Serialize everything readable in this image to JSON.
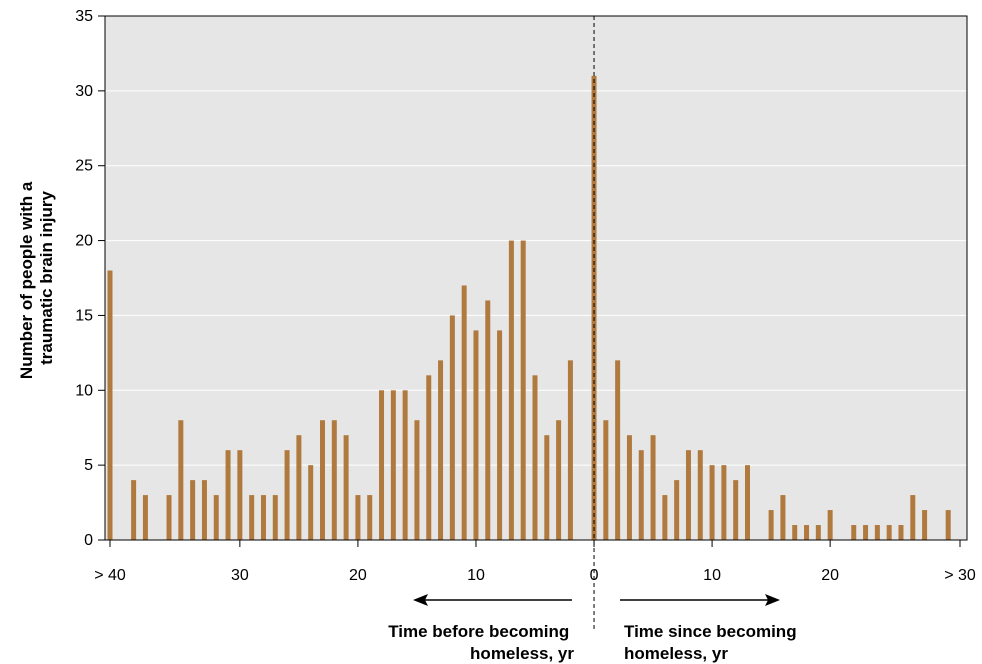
{
  "chart_data": {
    "type": "bar",
    "ylabel_lines": [
      "Number of people with a",
      "traumatic brain injury"
    ],
    "ylim": [
      0,
      35
    ],
    "y_ticks": [
      0,
      5,
      10,
      15,
      20,
      25,
      30,
      35
    ],
    "x_range": [
      -41,
      31
    ],
    "x_ticks": [
      {
        "pos": -41,
        "label": "> 40"
      },
      {
        "pos": -30,
        "label": "30"
      },
      {
        "pos": -20,
        "label": "20"
      },
      {
        "pos": -10,
        "label": "10"
      },
      {
        "pos": 0,
        "label": "0"
      },
      {
        "pos": 10,
        "label": "10"
      },
      {
        "pos": 20,
        "label": "20"
      },
      {
        "pos": 31,
        "label": "> 30"
      }
    ],
    "grid": true,
    "reference_line_at": 0,
    "bar_color": "#b07a3f",
    "plot_background": "#e6e6e6",
    "before_label_lines": [
      "Time before becoming",
      "homeless, yr"
    ],
    "after_label_lines": [
      "Time since becoming",
      "homeless, yr"
    ],
    "bars": [
      {
        "x": -41,
        "value": 18
      },
      {
        "x": -39,
        "value": 4
      },
      {
        "x": -38,
        "value": 3
      },
      {
        "x": -36,
        "value": 3
      },
      {
        "x": -35,
        "value": 8
      },
      {
        "x": -34,
        "value": 4
      },
      {
        "x": -33,
        "value": 4
      },
      {
        "x": -32,
        "value": 3
      },
      {
        "x": -31,
        "value": 6
      },
      {
        "x": -30,
        "value": 6
      },
      {
        "x": -29,
        "value": 3
      },
      {
        "x": -28,
        "value": 3
      },
      {
        "x": -27,
        "value": 3
      },
      {
        "x": -26,
        "value": 6
      },
      {
        "x": -25,
        "value": 7
      },
      {
        "x": -24,
        "value": 5
      },
      {
        "x": -23,
        "value": 8
      },
      {
        "x": -22,
        "value": 8
      },
      {
        "x": -21,
        "value": 7
      },
      {
        "x": -20,
        "value": 3
      },
      {
        "x": -19,
        "value": 3
      },
      {
        "x": -18,
        "value": 10
      },
      {
        "x": -17,
        "value": 10
      },
      {
        "x": -16,
        "value": 10
      },
      {
        "x": -15,
        "value": 8
      },
      {
        "x": -14,
        "value": 11
      },
      {
        "x": -13,
        "value": 12
      },
      {
        "x": -12,
        "value": 15
      },
      {
        "x": -11,
        "value": 17
      },
      {
        "x": -10,
        "value": 14
      },
      {
        "x": -9,
        "value": 16
      },
      {
        "x": -8,
        "value": 14
      },
      {
        "x": -7,
        "value": 20
      },
      {
        "x": -6,
        "value": 20
      },
      {
        "x": -5,
        "value": 11
      },
      {
        "x": -4,
        "value": 7
      },
      {
        "x": -3,
        "value": 8
      },
      {
        "x": -2,
        "value": 12
      },
      {
        "x": 0,
        "value": 31
      },
      {
        "x": 1,
        "value": 8
      },
      {
        "x": 2,
        "value": 12
      },
      {
        "x": 3,
        "value": 7
      },
      {
        "x": 4,
        "value": 6
      },
      {
        "x": 5,
        "value": 7
      },
      {
        "x": 6,
        "value": 3
      },
      {
        "x": 7,
        "value": 4
      },
      {
        "x": 8,
        "value": 6
      },
      {
        "x": 9,
        "value": 6
      },
      {
        "x": 10,
        "value": 5
      },
      {
        "x": 11,
        "value": 5
      },
      {
        "x": 12,
        "value": 4
      },
      {
        "x": 13,
        "value": 5
      },
      {
        "x": 15,
        "value": 2
      },
      {
        "x": 16,
        "value": 3
      },
      {
        "x": 17,
        "value": 1
      },
      {
        "x": 18,
        "value": 1
      },
      {
        "x": 19,
        "value": 1
      },
      {
        "x": 20,
        "value": 2
      },
      {
        "x": 22,
        "value": 1
      },
      {
        "x": 23,
        "value": 1
      },
      {
        "x": 24,
        "value": 1
      },
      {
        "x": 25,
        "value": 1
      },
      {
        "x": 26,
        "value": 1
      },
      {
        "x": 27,
        "value": 3
      },
      {
        "x": 28,
        "value": 2
      },
      {
        "x": 30,
        "value": 2
      }
    ]
  }
}
